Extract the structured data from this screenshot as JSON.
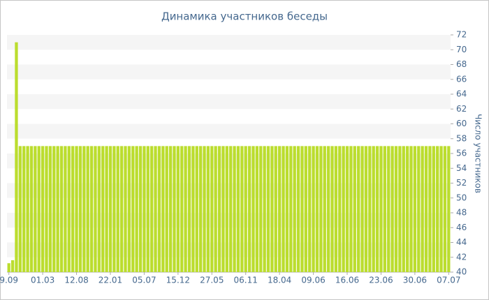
{
  "chart_data": {
    "type": "bar",
    "title": "Динамика участников беседы",
    "y_axis_label": "Число участников",
    "categories": [
      "9.09",
      null,
      null,
      null,
      null,
      null,
      null,
      null,
      null,
      "01.03",
      null,
      null,
      null,
      null,
      null,
      null,
      null,
      null,
      "12.08",
      null,
      null,
      null,
      null,
      null,
      null,
      null,
      null,
      "22.01",
      null,
      null,
      null,
      null,
      null,
      null,
      null,
      null,
      "05.07",
      null,
      null,
      null,
      null,
      null,
      null,
      null,
      null,
      "15.12",
      null,
      null,
      null,
      null,
      null,
      null,
      null,
      null,
      "27.05",
      null,
      null,
      null,
      null,
      null,
      null,
      null,
      null,
      "06.11",
      null,
      null,
      null,
      null,
      null,
      null,
      null,
      null,
      "18.04",
      null,
      null,
      null,
      null,
      null,
      null,
      null,
      null,
      "09.06",
      null,
      null,
      null,
      null,
      null,
      null,
      null,
      null,
      "16.06",
      null,
      null,
      null,
      null,
      null,
      null,
      null,
      null,
      "23.06",
      null,
      null,
      null,
      null,
      null,
      null,
      null,
      null,
      "30.06",
      null,
      null,
      null,
      null,
      null,
      null,
      null,
      null,
      "07.07"
    ],
    "values": [
      41.2,
      41.6,
      71,
      57,
      57,
      57,
      57,
      57,
      57,
      57,
      57,
      57,
      57,
      57,
      57,
      57,
      57,
      57,
      57,
      57,
      57,
      57,
      57,
      57,
      57,
      57,
      57,
      57,
      57,
      57,
      57,
      57,
      57,
      57,
      57,
      57,
      57,
      57,
      57,
      57,
      57,
      57,
      57,
      57,
      57,
      57,
      57,
      57,
      57,
      57,
      57,
      57,
      57,
      57,
      57,
      57,
      57,
      57,
      57,
      57,
      57,
      57,
      57,
      57,
      57,
      57,
      57,
      57,
      57,
      57,
      57,
      57,
      57,
      57,
      57,
      57,
      57,
      57,
      57,
      57,
      57,
      57,
      57,
      57,
      57,
      57,
      57,
      57,
      57,
      57,
      57,
      57,
      57,
      57,
      57,
      57,
      57,
      57,
      57,
      57,
      57,
      57,
      57,
      57,
      57,
      57,
      57,
      57,
      57,
      57,
      57,
      57,
      57,
      57,
      57,
      57,
      57,
      57
    ],
    "color": "#bbdd2e",
    "ylim": [
      40,
      72
    ],
    "yticks": [
      40,
      42,
      44,
      46,
      48,
      50,
      52,
      54,
      56,
      58,
      60,
      62,
      64,
      66,
      68,
      70,
      72
    ],
    "grid": true
  }
}
